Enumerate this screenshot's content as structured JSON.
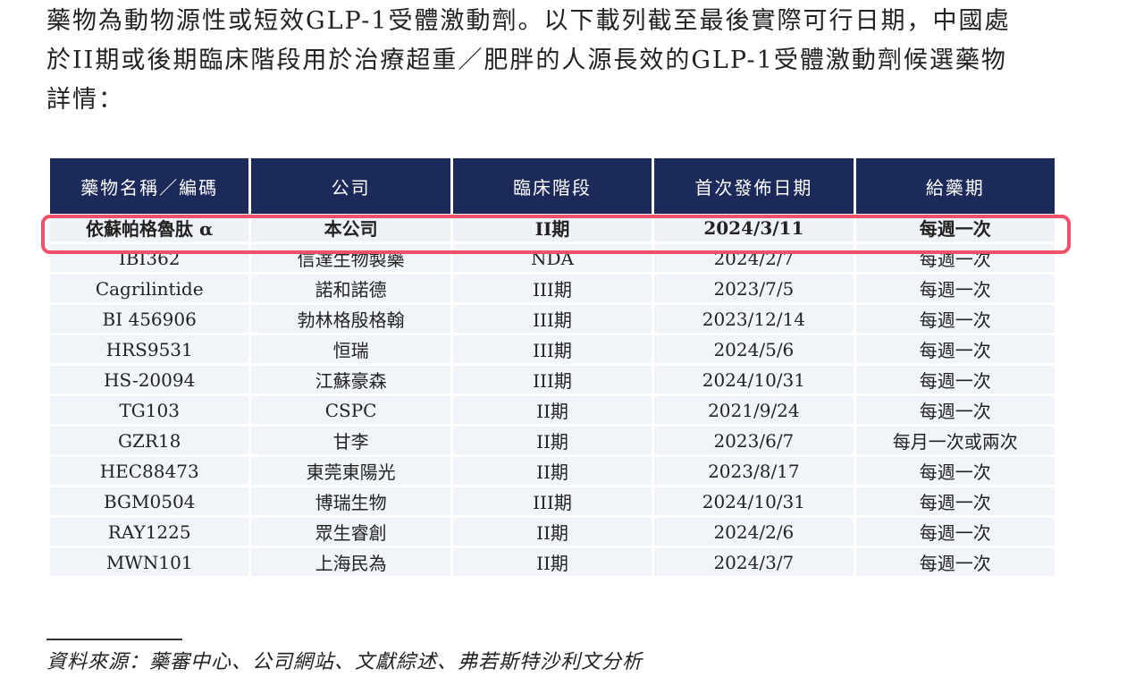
{
  "intro": {
    "lines": [
      "藥物為動物源性或短效GLP-1受體激動劑。以下載列截至最後實際可行日期，中國處",
      "於II期或後期臨床階段用於治療超重／肥胖的人源長效的GLP-1受體激動劑候選藥物",
      "詳情："
    ]
  },
  "table": {
    "headers": [
      "藥物名稱／編碼",
      "公司",
      "臨床階段",
      "首次發佈日期",
      "給藥期"
    ],
    "rows": [
      [
        "依蘇帕格魯肽 α",
        "本公司",
        "II期",
        "2024/3/11",
        "每週一次"
      ],
      [
        "IBI362",
        "信達生物製藥",
        "NDA",
        "2024/2/7",
        "每週一次"
      ],
      [
        "Cagrilintide",
        "諾和諾德",
        "III期",
        "2023/7/5",
        "每週一次"
      ],
      [
        "BI 456906",
        "勃林格殷格翰",
        "III期",
        "2023/12/14",
        "每週一次"
      ],
      [
        "HRS9531",
        "恒瑞",
        "III期",
        "2024/5/6",
        "每週一次"
      ],
      [
        "HS-20094",
        "江蘇豪森",
        "III期",
        "2024/10/31",
        "每週一次"
      ],
      [
        "TG103",
        "CSPC",
        "II期",
        "2021/9/24",
        "每週一次"
      ],
      [
        "GZR18",
        "甘李",
        "II期",
        "2023/6/7",
        "每月一次或兩次"
      ],
      [
        "HEC88473",
        "東莞東陽光",
        "II期",
        "2023/8/17",
        "每週一次"
      ],
      [
        "BGM0504",
        "博瑞生物",
        "III期",
        "2024/10/31",
        "每週一次"
      ],
      [
        "RAY1225",
        "眾生睿創",
        "II期",
        "2024/2/6",
        "每週一次"
      ],
      [
        "MWN101",
        "上海民為",
        "II期",
        "2024/3/7",
        "每週一次"
      ]
    ]
  },
  "source": "資料來源：藥審中心、公司網站、文獻綜述、弗若斯特沙利文分析",
  "colors": {
    "header_bg": "#1c2a5a",
    "row_bg": "#f1f5f9",
    "highlight": "#f0506a"
  }
}
